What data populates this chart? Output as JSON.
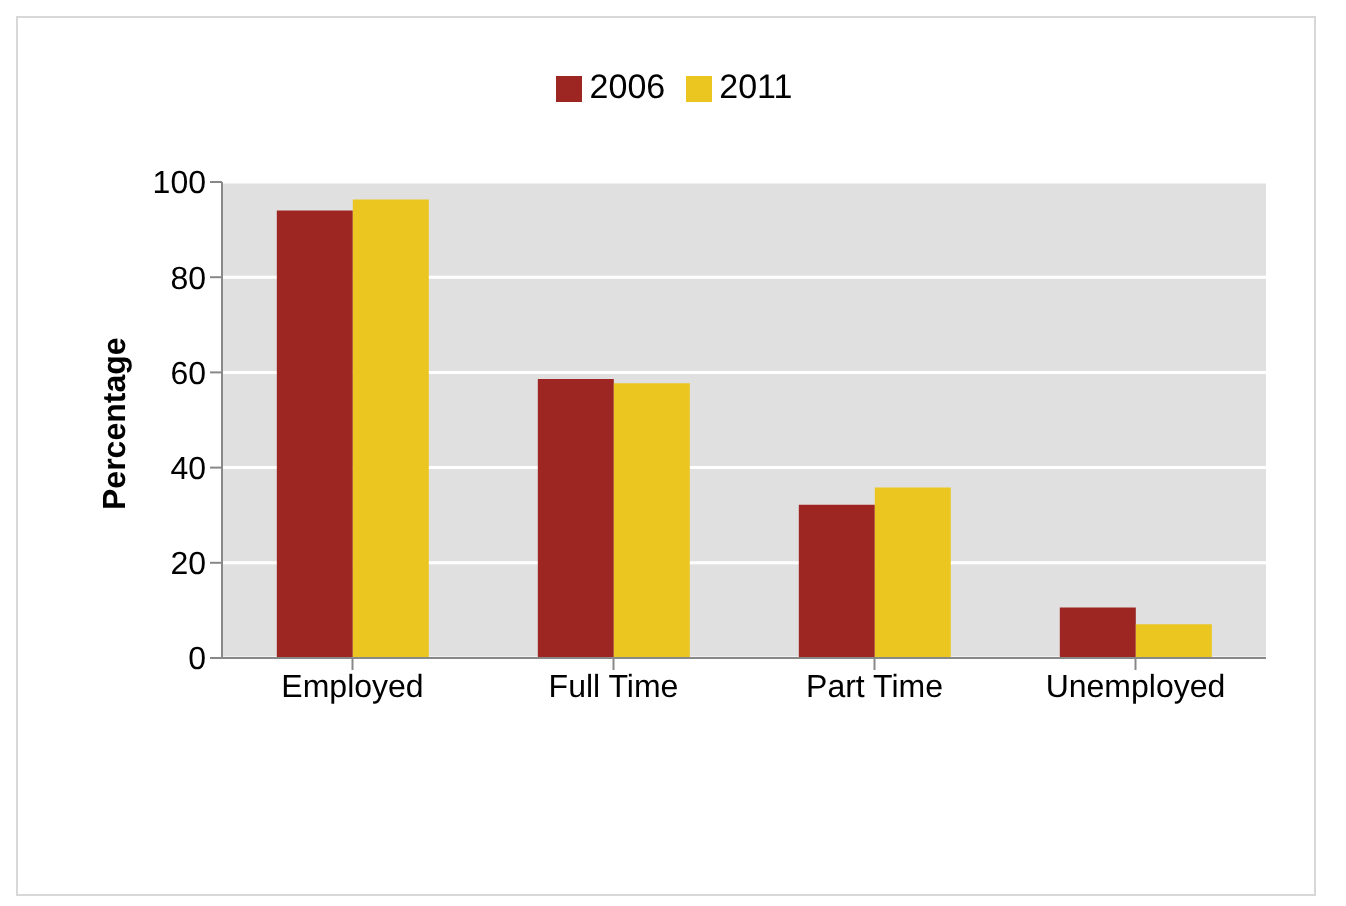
{
  "chart_data": {
    "type": "bar",
    "ylabel": "Percentage",
    "categories": [
      "Employed",
      "Full Time",
      "Part Time",
      "Unemployed"
    ],
    "series": [
      {
        "name": "2006",
        "color": "#9e2622",
        "values": [
          94,
          58.6,
          32.2,
          10.6
        ]
      },
      {
        "name": "2011",
        "color": "#ebc620",
        "values": [
          96.3,
          57.7,
          35.8,
          7.1
        ]
      }
    ],
    "ylim": [
      0,
      100
    ],
    "yticks": [
      0,
      20,
      40,
      60,
      80,
      100
    ],
    "grid": "y",
    "legend": "top"
  }
}
